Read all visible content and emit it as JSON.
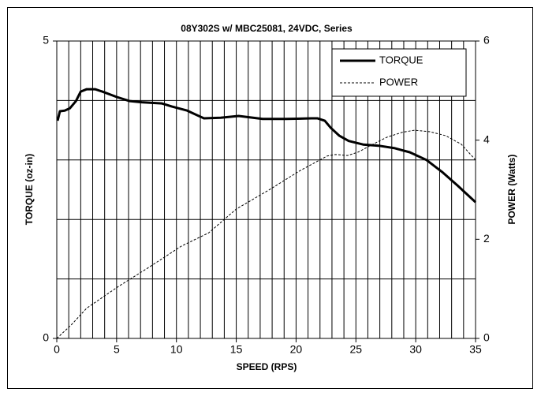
{
  "chart_data": {
    "type": "line",
    "title": "08Y302S w/ MBC25081, 24VDC, Series",
    "x_label": "SPEED (RPS)",
    "y_label": "TORQUE (oz-in)",
    "y2_label": "POWER (Watts)",
    "xlim": [
      0,
      35
    ],
    "xticks": [
      0,
      5,
      10,
      15,
      20,
      25,
      30,
      35
    ],
    "ylim": [
      0,
      5
    ],
    "yticks": [
      0,
      5
    ],
    "y2lim": [
      0,
      6
    ],
    "y2ticks": [
      0,
      2,
      4,
      6
    ],
    "grid": {
      "x_step": 1,
      "y_step": 1
    },
    "legend": "upper right",
    "series": [
      {
        "name": "TORQUE",
        "color": "#000000",
        "style": "solid",
        "x": [
          0.07,
          0.26,
          0.66,
          1.1,
          1.6,
          2.0,
          2.5,
          3.2,
          3.8,
          5,
          6.1,
          7.1,
          8.8,
          9.6,
          10.9,
          12.3,
          13.7,
          15.2,
          17.2,
          19.2,
          21.3,
          21.8,
          22.4,
          22.9,
          23.6,
          24.4,
          25.6,
          26.9,
          28.2,
          29.5,
          30.9,
          32.2,
          33.5,
          35
        ],
        "values": [
          3.66,
          3.82,
          3.83,
          3.87,
          3.99,
          4.15,
          4.19,
          4.19,
          4.15,
          4.06,
          3.99,
          3.97,
          3.95,
          3.9,
          3.83,
          3.7,
          3.71,
          3.74,
          3.69,
          3.69,
          3.7,
          3.7,
          3.66,
          3.54,
          3.41,
          3.32,
          3.26,
          3.24,
          3.2,
          3.13,
          3.0,
          2.8,
          2.57,
          2.29
        ]
      },
      {
        "name": "POWER",
        "color": "#000000",
        "style": "dashed",
        "axis": "y2",
        "x": [
          0,
          1.2,
          2.5,
          5.1,
          7.8,
          10.4,
          12.7,
          15,
          17.7,
          20.3,
          21.6,
          22.6,
          23.3,
          24.3,
          25.2,
          26.2,
          27.6,
          28.9,
          29.9,
          31.2,
          32.5,
          33.8,
          35
        ],
        "values": [
          0,
          0.27,
          0.61,
          1.04,
          1.45,
          1.86,
          2.13,
          2.61,
          2.99,
          3.38,
          3.55,
          3.68,
          3.71,
          3.69,
          3.76,
          3.89,
          4.06,
          4.16,
          4.2,
          4.17,
          4.09,
          3.92,
          3.6
        ]
      }
    ]
  }
}
